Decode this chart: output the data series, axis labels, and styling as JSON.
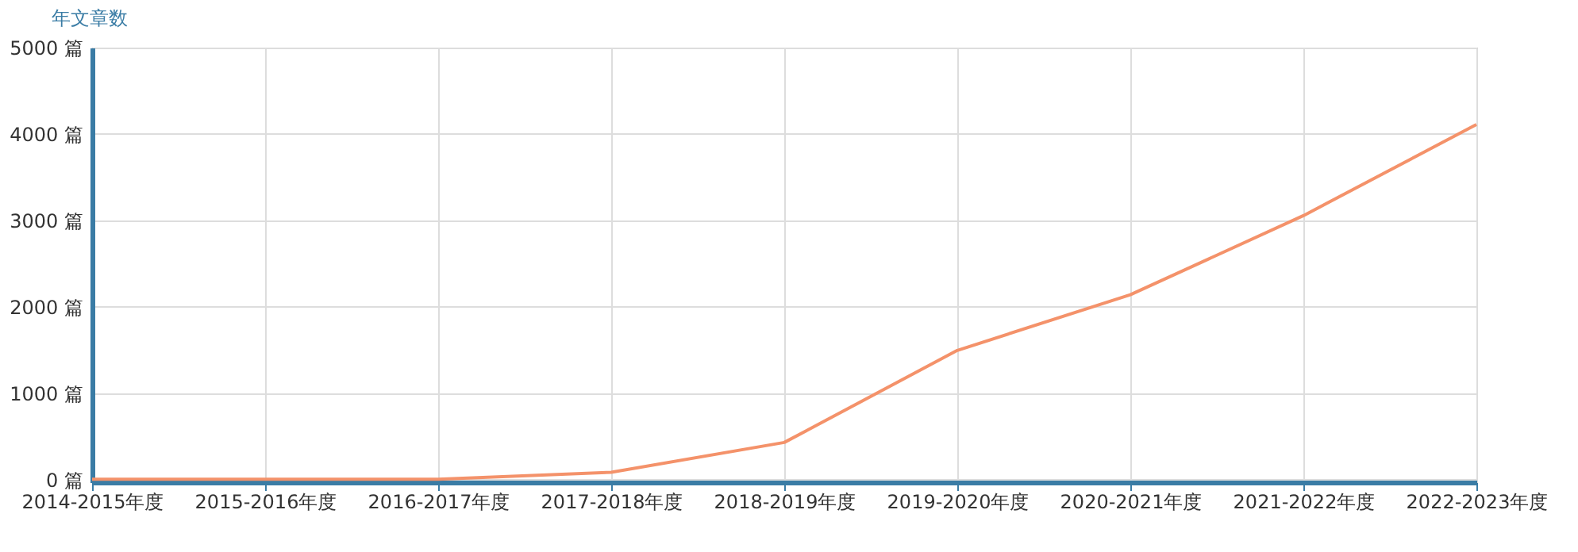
{
  "chart_data": {
    "type": "line",
    "ylabel": "年文章数",
    "categories": [
      "2014-2015年度",
      "2015-2016年度",
      "2016-2017年度",
      "2017-2018年度",
      "2018-2019年度",
      "2019-2020年度",
      "2020-2021年度",
      "2021-2022年度",
      "2022-2023年度"
    ],
    "series": [
      {
        "color": "#f4926a",
        "values": [
          5,
          5,
          5,
          85,
          430,
          1495,
          2140,
          3055,
          4110
        ]
      }
    ],
    "ylim": [
      -30,
      5000
    ],
    "yticks": [
      {
        "value": 0,
        "label": "0 篇"
      },
      {
        "value": 1000,
        "label": "1000 篇"
      },
      {
        "value": 2000,
        "label": "2000 篇"
      },
      {
        "value": 3000,
        "label": "3000 篇"
      },
      {
        "value": 4000,
        "label": "4000 篇"
      },
      {
        "value": 5000,
        "label": "5000 篇"
      }
    ],
    "grid": true,
    "legend": false,
    "marker": "none",
    "line_style": "solid"
  }
}
